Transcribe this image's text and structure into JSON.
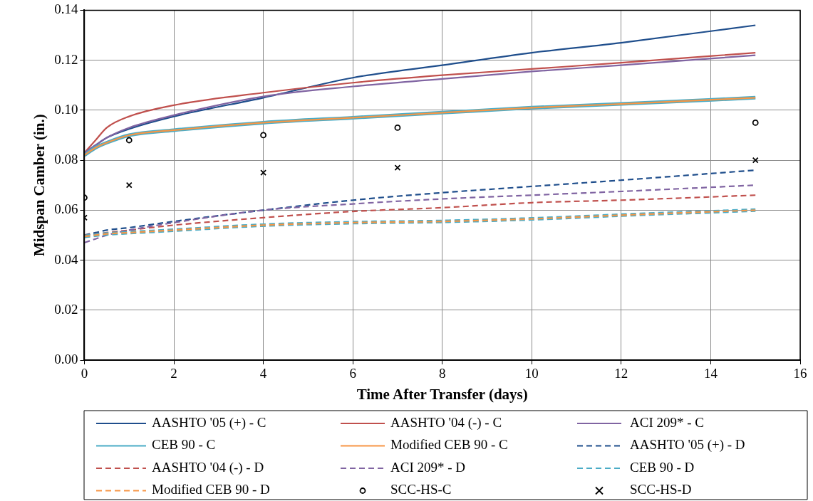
{
  "chart_data": {
    "type": "line",
    "xlabel": "Time After Transfer (days)",
    "ylabel": "Midspan Camber (in.)",
    "x": [
      0,
      0.25,
      0.5,
      1,
      2,
      4,
      6,
      8,
      10,
      12,
      15
    ],
    "xlim": [
      0,
      16
    ],
    "xticks": [
      0,
      2,
      4,
      6,
      8,
      10,
      12,
      14,
      16
    ],
    "ylim": [
      0,
      0.14
    ],
    "yticks": [
      {
        "value": 0,
        "label": "0.00"
      },
      {
        "value": 0.02,
        "label": "0.02"
      },
      {
        "value": 0.04,
        "label": "0.04"
      },
      {
        "value": 0.06,
        "label": "0.06"
      },
      {
        "value": 0.08,
        "label": "0.08"
      },
      {
        "value": 0.1,
        "label": "0.10"
      },
      {
        "value": 0.12,
        "label": "0.12"
      },
      {
        "value": 0.14,
        "label": "0.14"
      }
    ],
    "grid": true,
    "legend": "bottom",
    "marker": "none",
    "series": [
      {
        "name": "AASHTO '05 (+) - C",
        "color": "#1f4e8c",
        "line_style": "solid",
        "values": [
          0.083,
          0.086,
          0.089,
          0.0925,
          0.0975,
          0.105,
          0.113,
          0.118,
          0.123,
          0.127,
          0.134
        ]
      },
      {
        "name": "AASHTO '04 (-) - C",
        "color": "#c0504d",
        "line_style": "solid",
        "values": [
          0.083,
          0.088,
          0.093,
          0.0975,
          0.102,
          0.107,
          0.111,
          0.114,
          0.1165,
          0.119,
          0.123
        ]
      },
      {
        "name": "ACI 209* - C",
        "color": "#8064a2",
        "line_style": "solid",
        "values": [
          0.083,
          0.086,
          0.089,
          0.093,
          0.098,
          0.1055,
          0.1095,
          0.1125,
          0.1155,
          0.118,
          0.122
        ]
      },
      {
        "name": "CEB 90 - C",
        "color": "#4bacc6",
        "line_style": "solid",
        "values": [
          0.082,
          0.085,
          0.087,
          0.09,
          0.092,
          0.095,
          0.097,
          0.099,
          0.101,
          0.1025,
          0.105
        ]
      },
      {
        "name": "Modified CEB 90 - C",
        "color": "#f79646",
        "line_style": "solid",
        "values": [
          0.082,
          0.085,
          0.087,
          0.09,
          0.092,
          0.095,
          0.097,
          0.099,
          0.101,
          0.1025,
          0.105
        ]
      },
      {
        "name": "AASHTO '05 (+) - D",
        "color": "#1f4e8c",
        "line_style": "dashed",
        "values": [
          0.05,
          0.051,
          0.052,
          0.053,
          0.0555,
          0.06,
          0.064,
          0.067,
          0.0695,
          0.072,
          0.076
        ]
      },
      {
        "name": "AASHTO '04 (-) - D",
        "color": "#c0504d",
        "line_style": "dashed",
        "values": [
          0.05,
          0.0505,
          0.051,
          0.052,
          0.054,
          0.057,
          0.0595,
          0.061,
          0.063,
          0.064,
          0.066
        ]
      },
      {
        "name": "ACI 209* - D",
        "color": "#8064a2",
        "line_style": "dashed",
        "values": [
          0.047,
          0.0485,
          0.05,
          0.052,
          0.055,
          0.06,
          0.0625,
          0.0645,
          0.066,
          0.0675,
          0.07
        ]
      },
      {
        "name": "CEB 90 - D",
        "color": "#4bacc6",
        "line_style": "dashed",
        "values": [
          0.0495,
          0.05,
          0.0505,
          0.051,
          0.052,
          0.054,
          0.055,
          0.0555,
          0.0565,
          0.058,
          0.06
        ]
      },
      {
        "name": "Modified CEB 90 - D",
        "color": "#f79646",
        "line_style": "dashed",
        "values": [
          0.0495,
          0.05,
          0.0505,
          0.051,
          0.052,
          0.054,
          0.055,
          0.0555,
          0.0565,
          0.058,
          0.06
        ]
      },
      {
        "name": "SCC-HS-C",
        "type": "scatter",
        "marker": "circle",
        "color": "#000000",
        "x": [
          0,
          1,
          4,
          7,
          15
        ],
        "values": [
          0.065,
          0.088,
          0.09,
          0.093,
          0.095
        ]
      },
      {
        "name": "SCC-HS-D",
        "type": "scatter",
        "marker": "cross",
        "color": "#000000",
        "x": [
          0,
          1,
          4,
          7,
          15
        ],
        "values": [
          0.057,
          0.07,
          0.075,
          0.077,
          0.08
        ]
      }
    ]
  }
}
